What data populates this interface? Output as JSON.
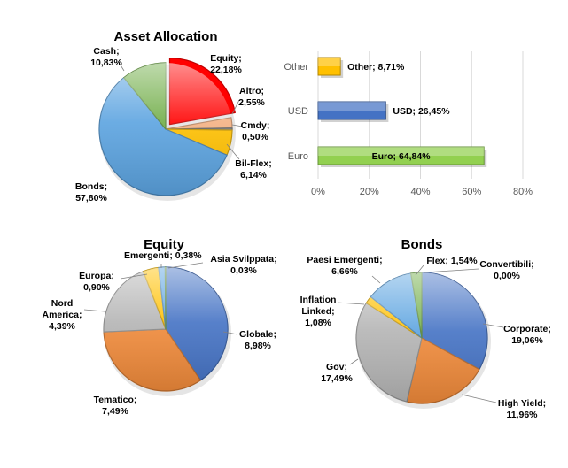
{
  "chart_data": [
    {
      "id": "asset_allocation",
      "type": "pie",
      "title": "Asset Allocation",
      "start_angle_deg": 0,
      "slices": [
        {
          "name": "Equity",
          "value": 22.18,
          "label": [
            "Equity;",
            "22,18%"
          ],
          "color": "#ff0000"
        },
        {
          "name": "Altro",
          "value": 2.55,
          "label": [
            "Altro;",
            "2,55%"
          ],
          "color": "#f4b183"
        },
        {
          "name": "Cmdy",
          "value": 0.5,
          "label": [
            "Cmdy;",
            "0,50%"
          ],
          "color": "#7f7f7f"
        },
        {
          "name": "Bil-Flex",
          "value": 6.14,
          "label": [
            "Bil-Flex;",
            "6,14%"
          ],
          "color": "#ffc000"
        },
        {
          "name": "Bonds",
          "value": 57.8,
          "label": [
            "Bonds;",
            "57,80%"
          ],
          "color": "#5ba3e0"
        },
        {
          "name": "Cash",
          "value": 10.83,
          "label": [
            "Cash;",
            "10,83%"
          ],
          "color": "#70ad47"
        }
      ]
    },
    {
      "id": "currency",
      "type": "bar",
      "orientation": "horizontal",
      "title": "",
      "categories": [
        "Other",
        "USD",
        "Euro"
      ],
      "values": [
        8.71,
        26.45,
        64.84
      ],
      "value_labels": [
        "Other; 8,71%",
        "USD; 26,45%",
        "Euro; 64,84%"
      ],
      "colors": [
        "#ffc000",
        "#4472c4",
        "#92d050"
      ],
      "xlim": [
        0,
        80
      ],
      "xticks": [
        "0%",
        "20%",
        "40%",
        "60%",
        "80%"
      ],
      "grid": true
    },
    {
      "id": "equity",
      "type": "pie",
      "title": "Equity",
      "start_angle_deg": 0,
      "slices": [
        {
          "name": "Globale",
          "value": 8.98,
          "label": [
            "Globale;",
            "8,98%"
          ],
          "color": "#4472c4"
        },
        {
          "name": "Tematico",
          "value": 7.49,
          "label": [
            "Tematico;",
            "7,49%"
          ],
          "color": "#f08a3a"
        },
        {
          "name": "Nord America",
          "value": 4.39,
          "label": [
            "Nord",
            "America;",
            "4,39%"
          ],
          "color": "#b4b4b4"
        },
        {
          "name": "Europa",
          "value": 0.9,
          "label": [
            "Europa;",
            "0,90%"
          ],
          "color": "#ffc000"
        },
        {
          "name": "Emergenti",
          "value": 0.38,
          "label": [
            "Emergenti; 0,38%"
          ],
          "color": "#5ba3e0"
        },
        {
          "name": "Asia Svilppata",
          "value": 0.03,
          "label": [
            "Asia Svilppata;",
            "0,03%"
          ],
          "color": "#70ad47"
        }
      ]
    },
    {
      "id": "bonds",
      "type": "pie",
      "title": "Bonds",
      "start_angle_deg": 0,
      "slices": [
        {
          "name": "Convertibili",
          "value": 0.0,
          "label": [
            "Convertibili;",
            "0,00%"
          ],
          "color": "#264478"
        },
        {
          "name": "Corporate",
          "value": 19.06,
          "label": [
            "Corporate;",
            "19,06%"
          ],
          "color": "#4472c4"
        },
        {
          "name": "High Yield",
          "value": 11.96,
          "label": [
            "High Yield;",
            "11,96%"
          ],
          "color": "#f08a3a"
        },
        {
          "name": "Gov",
          "value": 17.49,
          "label": [
            "Gov;",
            "17,49%"
          ],
          "color": "#b4b4b4"
        },
        {
          "name": "Inflation Linked",
          "value": 1.08,
          "label": [
            "Inflation",
            "Linked;",
            "1,08%"
          ],
          "color": "#ffc000"
        },
        {
          "name": "Paesi Emergenti",
          "value": 6.66,
          "label": [
            "Paesi Emergenti;",
            "6,66%"
          ],
          "color": "#5ba3e0"
        },
        {
          "name": "Flex",
          "value": 1.54,
          "label": [
            "Flex; 1,54%"
          ],
          "color": "#70ad47"
        }
      ]
    }
  ]
}
